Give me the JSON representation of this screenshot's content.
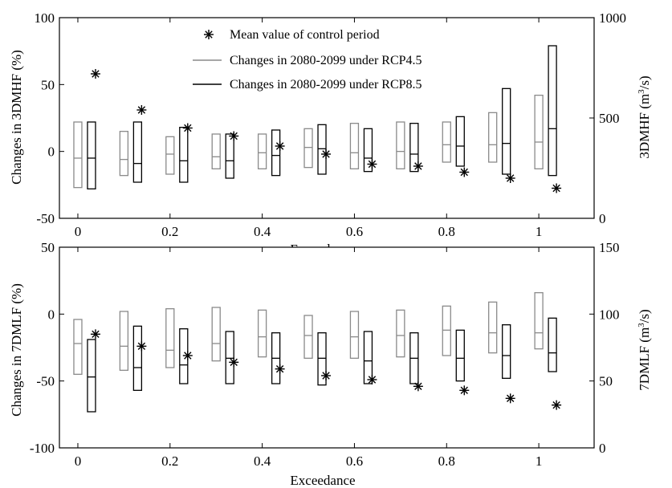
{
  "chart_data": [
    {
      "type": "box",
      "x": [
        0,
        0.1,
        0.2,
        0.3,
        0.4,
        0.5,
        0.6,
        0.7,
        0.8,
        0.9,
        1.0
      ],
      "xticks": [
        "0",
        "0.2",
        "0.4",
        "0.6",
        "0.8",
        "1"
      ],
      "xlabel": "Exceedance",
      "xlim": [
        -0.04,
        1.12
      ],
      "ylabel": "Changes in 3DMHF (%)",
      "ylim": [
        -50,
        100
      ],
      "yticks": [
        "-50",
        "0",
        "50",
        "100"
      ],
      "y2label_main": "3DMHF (m",
      "y2label_sup": "3",
      "y2label_tail": "/s)",
      "y2lim": [
        0,
        1000
      ],
      "y2ticks": [
        "0",
        "500",
        "1000"
      ],
      "legend": {
        "position": "top-center",
        "entries": [
          "Mean value of control period",
          "Changes in 2080-2099 under RCP4.5",
          "Changes in 2080-2099 under RCP8.5"
        ]
      },
      "series": [
        {
          "name": "Changes in 2080-2099 under RCP4.5",
          "color": "#8a8a8a",
          "low": [
            -27,
            -18,
            -17,
            -13,
            -13,
            -12,
            -13,
            -13,
            -8,
            -8,
            -13
          ],
          "median": [
            -5,
            -6,
            -2,
            -4,
            -1,
            3,
            -1,
            0,
            5,
            5,
            7
          ],
          "high": [
            22,
            15,
            11,
            13,
            13,
            17,
            21,
            22,
            22,
            29,
            42
          ]
        },
        {
          "name": "Changes in 2080-2099 under RCP8.5",
          "color": "#000000",
          "low": [
            -28,
            -23,
            -23,
            -20,
            -18,
            -17,
            -15,
            -15,
            -11,
            -17,
            -18
          ],
          "median": [
            -5,
            -9,
            -7,
            -7,
            -3,
            2,
            -5,
            -2,
            4,
            6,
            17
          ],
          "high": [
            22,
            22,
            18,
            13,
            16,
            20,
            17,
            21,
            26,
            47,
            79
          ]
        }
      ],
      "control_mean_y2": [
        720,
        540,
        450,
        410,
        360,
        320,
        270,
        260,
        230,
        200,
        150
      ]
    },
    {
      "type": "box",
      "x": [
        0,
        0.1,
        0.2,
        0.3,
        0.4,
        0.5,
        0.6,
        0.7,
        0.8,
        0.9,
        1.0
      ],
      "xticks": [
        "0",
        "0.2",
        "0.4",
        "0.6",
        "0.8",
        "1"
      ],
      "xlabel": "Exceedance",
      "xlim": [
        -0.04,
        1.12
      ],
      "ylabel": "Changes in 7DMLF (%)",
      "ylim": [
        -100,
        50
      ],
      "yticks": [
        "-100",
        "-50",
        "0",
        "50"
      ],
      "y2label_main": "7DMLF (m",
      "y2label_sup": "3",
      "y2label_tail": "/s)",
      "y2lim": [
        0,
        150
      ],
      "y2ticks": [
        "0",
        "50",
        "100",
        "150"
      ],
      "series": [
        {
          "name": "Changes in 2080-2099 under RCP4.5",
          "color": "#8a8a8a",
          "low": [
            -45,
            -42,
            -40,
            -35,
            -32,
            -33,
            -33,
            -32,
            -31,
            -29,
            -26
          ],
          "median": [
            -22,
            -24,
            -27,
            -22,
            -17,
            -16,
            -17,
            -16,
            -12,
            -14,
            -14
          ],
          "high": [
            -4,
            2,
            4,
            5,
            3,
            -1,
            2,
            3,
            6,
            9,
            16
          ]
        },
        {
          "name": "Changes in 2080-2099 under RCP8.5",
          "color": "#000000",
          "low": [
            -73,
            -57,
            -52,
            -52,
            -52,
            -53,
            -52,
            -52,
            -50,
            -48,
            -43
          ],
          "median": [
            -47,
            -40,
            -38,
            -33,
            -33,
            -33,
            -35,
            -33,
            -33,
            -31,
            -29
          ],
          "high": [
            -19,
            -9,
            -11,
            -13,
            -14,
            -14,
            -13,
            -14,
            -12,
            -8,
            -3
          ]
        }
      ],
      "control_mean_y2": [
        85,
        76,
        69,
        64,
        59,
        54,
        51,
        46,
        43,
        37,
        32
      ]
    }
  ]
}
